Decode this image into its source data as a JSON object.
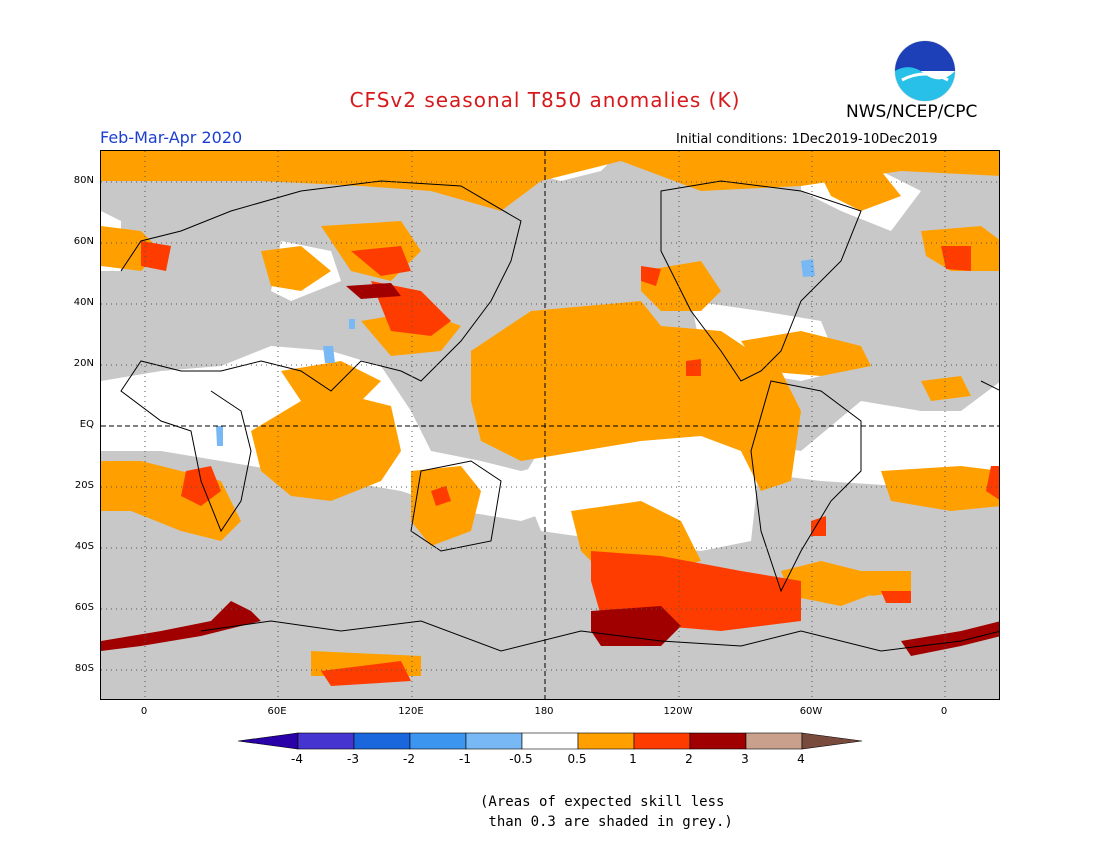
{
  "header": {
    "title": "CFSv2 seasonal T850 anomalies (K)",
    "agency": "NWS/NCEP/CPC",
    "logo_text": "NOAA",
    "period": "Feb-Mar-Apr 2020",
    "initial_conditions": "Initial conditions: 1Dec2019-10Dec2019"
  },
  "map": {
    "lat_labels": [
      "80N",
      "60N",
      "40N",
      "20N",
      "EQ",
      "20S",
      "40S",
      "60S",
      "80S"
    ],
    "lon_labels": [
      "0",
      "60E",
      "120E",
      "180",
      "120W",
      "60W",
      "0"
    ],
    "skill_mask_color": "#c8c8c8"
  },
  "legend": {
    "labels": [
      "-4",
      "-3",
      "-2",
      "-1",
      "-0.5",
      "0.5",
      "1",
      "2",
      "3",
      "4"
    ],
    "colors": [
      "#2a00a8",
      "#4634d0",
      "#1a66dc",
      "#3c96f0",
      "#78b9f5",
      "#ffffff",
      "#ffa000",
      "#ff3c00",
      "#a00000",
      "#c8a08c",
      "#784b3c"
    ]
  },
  "footnote": {
    "line1": "(Areas of expected skill less",
    "line2": " than 0.3 are shaded in grey.)"
  }
}
